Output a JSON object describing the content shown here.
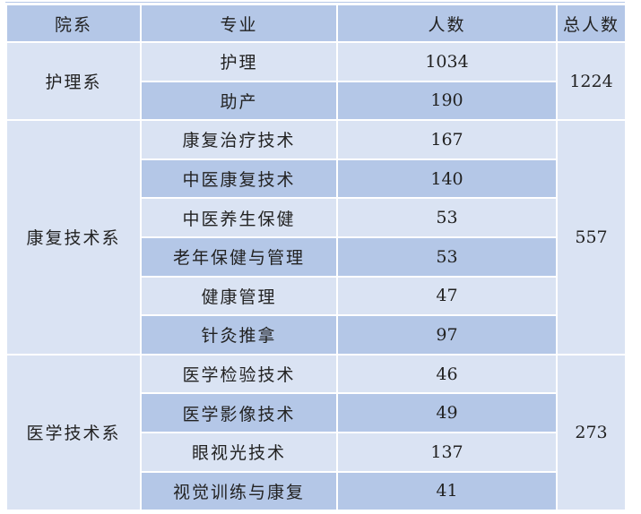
{
  "headers": {
    "dept": "院系",
    "major": "专业",
    "count": "人数",
    "total": "总人数"
  },
  "colors": {
    "header": "#b4c7e7",
    "light": "#dae3f3",
    "dark": "#b4c7e7"
  },
  "groups": [
    {
      "dept": "护理系",
      "total": "1224",
      "rows": [
        {
          "major": "护理",
          "count": "1034"
        },
        {
          "major": "助产",
          "count": "190"
        }
      ]
    },
    {
      "dept": "康复技术系",
      "total": "557",
      "rows": [
        {
          "major": "康复治疗技术",
          "count": "167"
        },
        {
          "major": "中医康复技术",
          "count": "140"
        },
        {
          "major": "中医养生保健",
          "count": "53"
        },
        {
          "major": "老年保健与管理",
          "count": "53"
        },
        {
          "major": "健康管理",
          "count": "47"
        },
        {
          "major": "针灸推拿",
          "count": "97"
        }
      ]
    },
    {
      "dept": "医学技术系",
      "total": "273",
      "rows": [
        {
          "major": "医学检验技术",
          "count": "46"
        },
        {
          "major": "医学影像技术",
          "count": "49"
        },
        {
          "major": "眼视光技术",
          "count": "137"
        },
        {
          "major": "视觉训练与康复",
          "count": "41"
        }
      ]
    }
  ]
}
